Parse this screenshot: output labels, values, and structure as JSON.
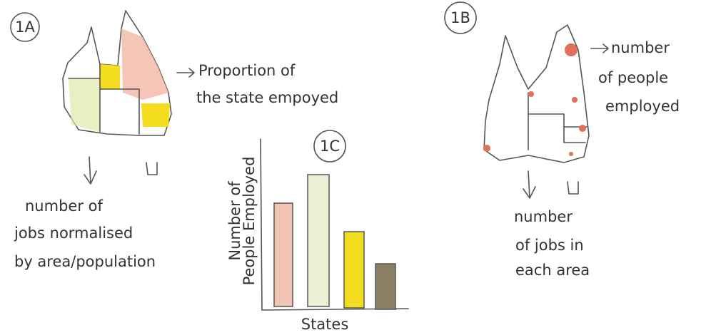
{
  "panels": [
    {
      "label": "1A",
      "annotation": [
        "Proportion of",
        "the state empoyed"
      ],
      "caption": [
        "number of",
        "jobs normalised",
        "by area/population"
      ]
    },
    {
      "label": "1B",
      "annotation": [
        "number",
        "of people",
        "employed"
      ],
      "caption": [
        "number",
        "of jobs in",
        "each area"
      ]
    },
    {
      "label": "1C",
      "y_label": [
        "Number of",
        "People Employed"
      ],
      "x_label": "States"
    }
  ]
}
